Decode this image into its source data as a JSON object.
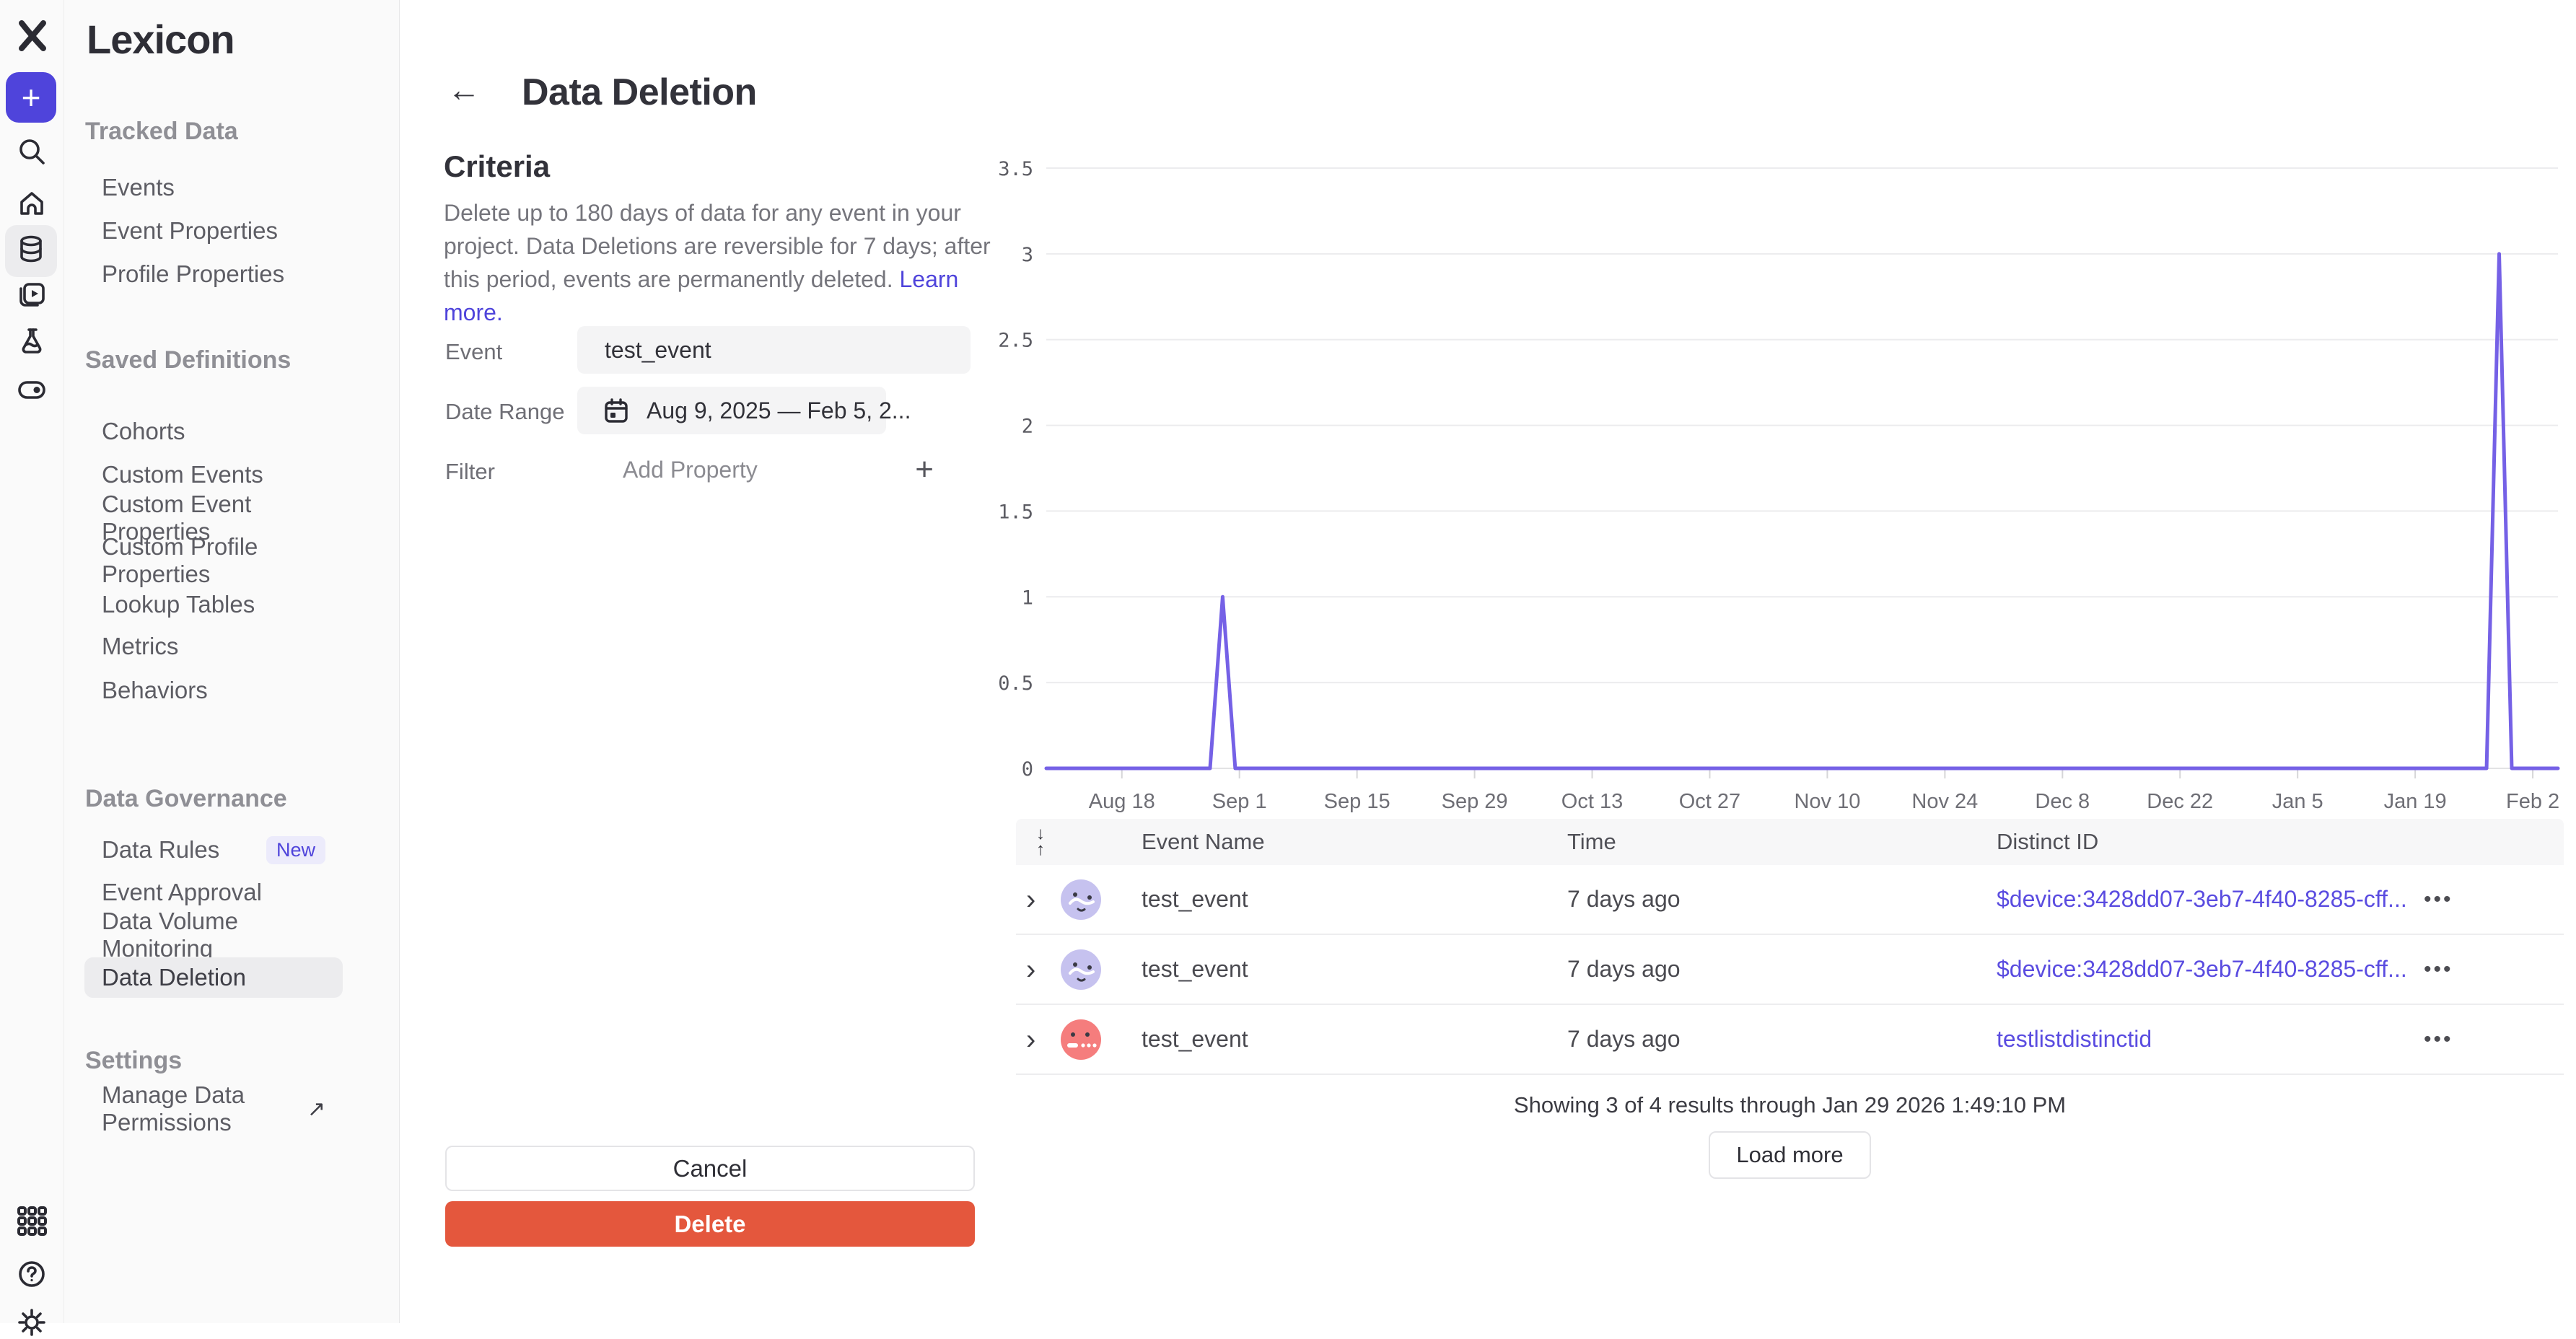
{
  "icons": {
    "back": "←",
    "plus": "+",
    "chevron": "›",
    "ellipsis": "•••",
    "sort_down": "↓",
    "sort_up": "↑",
    "external_link": "↗"
  },
  "colors": {
    "accent": "#4f44db",
    "line": "#7561e6",
    "delete": "#e4573d",
    "avatar_purple": "#c6c2ef",
    "avatar_red": "#f57d7d"
  },
  "sidebar": {
    "title": "Lexicon",
    "sections": [
      {
        "header": "Tracked Data",
        "items": [
          {
            "label": "Events"
          },
          {
            "label": "Event Properties"
          },
          {
            "label": "Profile Properties"
          }
        ]
      },
      {
        "header": "Saved Definitions",
        "items": [
          {
            "label": "Cohorts"
          },
          {
            "label": "Custom Events"
          },
          {
            "label": "Custom Event Properties"
          },
          {
            "label": "Custom Profile Properties"
          },
          {
            "label": "Lookup Tables"
          },
          {
            "label": "Metrics"
          },
          {
            "label": "Behaviors"
          }
        ]
      },
      {
        "header": "Data Governance",
        "items": [
          {
            "label": "Data Rules",
            "badge": "New"
          },
          {
            "label": "Event Approval"
          },
          {
            "label": "Data Volume Monitoring"
          },
          {
            "label": "Data Deletion",
            "selected": true
          }
        ]
      },
      {
        "header": "Settings",
        "items": [
          {
            "label": "Manage Data Permissions",
            "external": true
          }
        ]
      }
    ]
  },
  "header": {
    "title": "Data Deletion"
  },
  "criteria": {
    "heading": "Criteria",
    "description": "Delete up to 180 days of data for any event in your project. Data Deletions are reversible for 7 days; after this period, events are permanently deleted. ",
    "learn_more": "Learn more.",
    "event_label": "Event",
    "event_value": "test_event",
    "date_range_label": "Date Range",
    "date_range_value": "Aug 9, 2025 — Feb 5, 2...",
    "filter_label": "Filter",
    "filter_placeholder": "Add Property"
  },
  "actions": {
    "cancel": "Cancel",
    "delete": "Delete"
  },
  "chart_data": {
    "type": "line",
    "title": "",
    "xlabel": "",
    "ylabel": "",
    "x_range": [
      "Aug 9, 2025",
      "Feb 5, 2026"
    ],
    "total_days": 180,
    "ylim": [
      0,
      3.5
    ],
    "grid": true,
    "legend": false,
    "line_color": "#7561e6",
    "y_ticks": [
      "0",
      "0.5",
      "1",
      "1.5",
      "2",
      "2.5",
      "3",
      "3.5"
    ],
    "x_ticks": [
      {
        "day": 9,
        "label": "Aug 18"
      },
      {
        "day": 23,
        "label": "Sep 1"
      },
      {
        "day": 37,
        "label": "Sep 15"
      },
      {
        "day": 51,
        "label": "Sep 29"
      },
      {
        "day": 65,
        "label": "Oct 13"
      },
      {
        "day": 79,
        "label": "Oct 27"
      },
      {
        "day": 93,
        "label": "Nov 10"
      },
      {
        "day": 107,
        "label": "Nov 24"
      },
      {
        "day": 121,
        "label": "Dec 8"
      },
      {
        "day": 135,
        "label": "Dec 22"
      },
      {
        "day": 149,
        "label": "Jan 5"
      },
      {
        "day": 163,
        "label": "Jan 19"
      },
      {
        "day": 177,
        "label": "Feb 2"
      }
    ],
    "series": [
      {
        "name": "test_event",
        "points": [
          {
            "day": 0,
            "value": 0
          },
          {
            "day": 19.5,
            "value": 0
          },
          {
            "day": 21,
            "value": 1
          },
          {
            "day": 22.5,
            "value": 0
          },
          {
            "day": 171.5,
            "value": 0
          },
          {
            "day": 173,
            "value": 3
          },
          {
            "day": 174.5,
            "value": 0
          },
          {
            "day": 180,
            "value": 0
          }
        ]
      }
    ],
    "annotations": {
      "spikes": [
        {
          "date": "Aug 30, 2025",
          "value": 1
        },
        {
          "date": "Jan 29, 2026",
          "value": 3
        }
      ]
    }
  },
  "table": {
    "columns": {
      "event_name": "Event Name",
      "time": "Time",
      "distinct_id": "Distinct ID"
    },
    "rows": [
      {
        "event": "test_event",
        "time": "7 days ago",
        "distinct_id": "$device:3428dd07-3eb7-4f40-8285-cff...",
        "avatar_color": "#c6c2ef"
      },
      {
        "event": "test_event",
        "time": "7 days ago",
        "distinct_id": "$device:3428dd07-3eb7-4f40-8285-cff...",
        "avatar_color": "#c6c2ef"
      },
      {
        "event": "test_event",
        "time": "7 days ago",
        "distinct_id": "testlistdistinctid",
        "avatar_color": "#f57d7d"
      }
    ],
    "footer": {
      "summary": "Showing 3 of 4 results through Jan 29 2026 1:49:10 PM",
      "load_more": "Load more"
    }
  }
}
